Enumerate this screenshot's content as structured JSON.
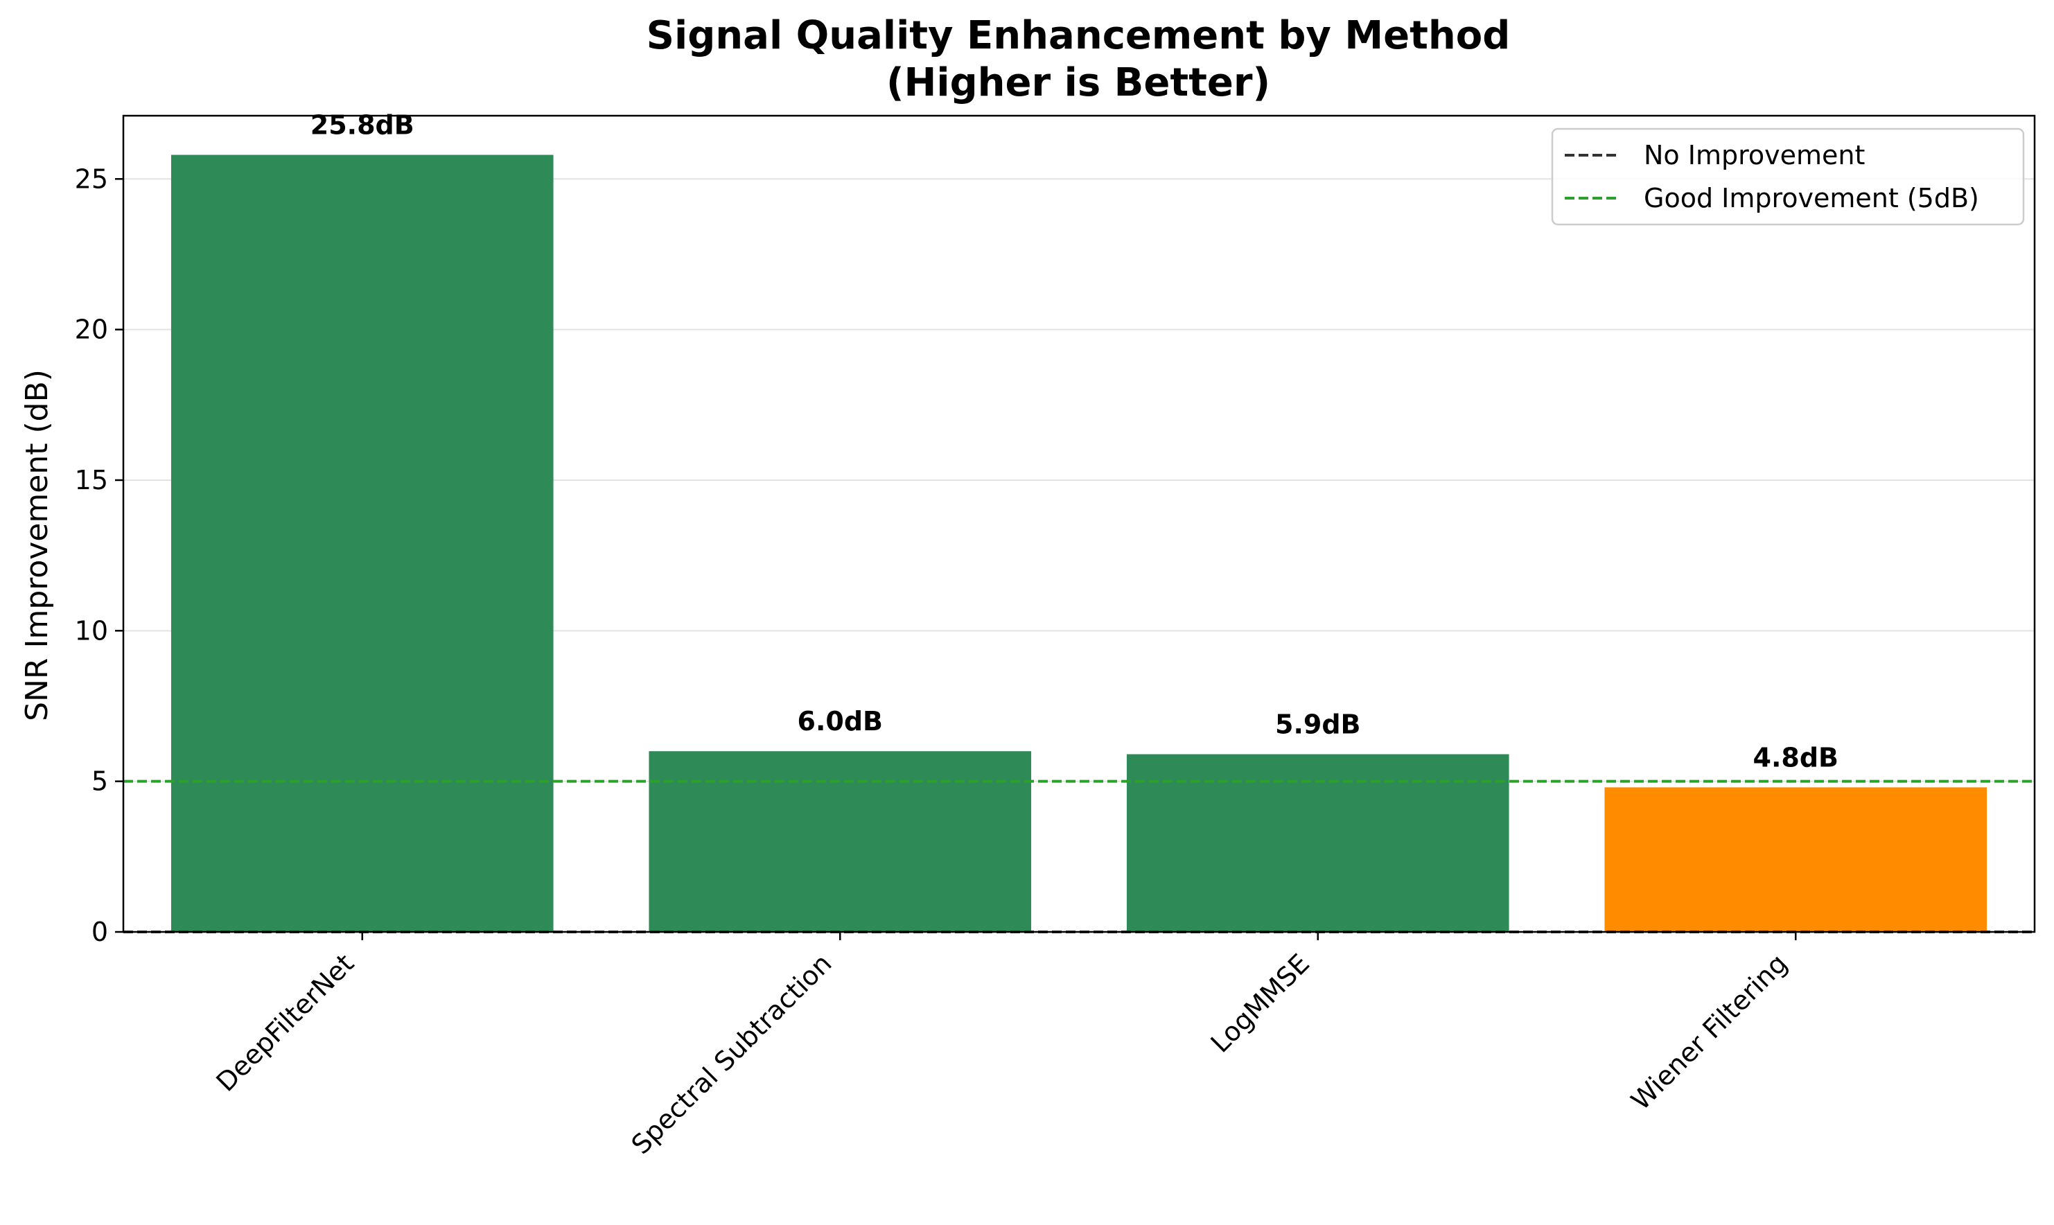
{
  "chart_data": {
    "type": "bar",
    "title": "Signal Quality Enhancement by Method",
    "subtitle": "(Higher is Better)",
    "xlabel": "",
    "ylabel": "SNR Improvement (dB)",
    "categories": [
      "DeepFilterNet",
      "Spectral Subtraction",
      "LogMMSE",
      "Wiener Filtering"
    ],
    "values": [
      25.8,
      6.0,
      5.9,
      4.8
    ],
    "data_labels": [
      "25.8dB",
      "6.0dB",
      "5.9dB",
      "4.8dB"
    ],
    "bar_colors": [
      "#2e8b57",
      "#2e8b57",
      "#2e8b57",
      "#ff8c00"
    ],
    "ylim": [
      0,
      27.1
    ],
    "yticks": [
      0,
      5,
      10,
      15,
      20,
      25
    ],
    "grid": "y",
    "legend_position": "top-right",
    "reference_lines": [
      {
        "name": "No Improvement",
        "y": 0,
        "color": "#333333",
        "style": "dashed"
      },
      {
        "name": "Good Improvement (5dB)",
        "y": 5,
        "color": "#2ca02c",
        "style": "dashed"
      }
    ]
  }
}
